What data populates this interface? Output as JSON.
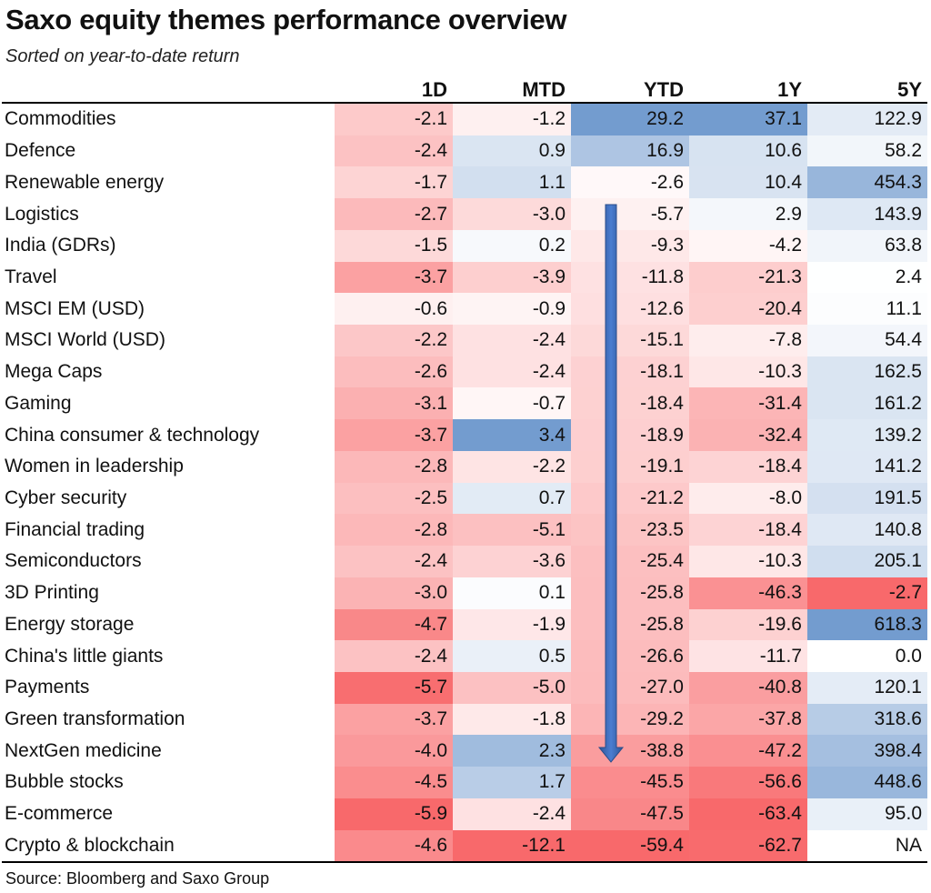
{
  "header": {
    "title": "Saxo equity themes performance overview",
    "subtitle": "Sorted on year-to-date return"
  },
  "footer": {
    "source": "Source: Bloomberg and Saxo Group"
  },
  "colors": {
    "negative": "#f8696b",
    "positive": "#5a8ac6",
    "neutral": "#ffffff",
    "arrow": "#4472c4"
  },
  "annotation": {
    "arrow": "down-arrow",
    "column": "YTD",
    "from_row": "Logistics",
    "to_row": "NextGen medicine"
  },
  "chart_data": {
    "type": "table",
    "title": "Saxo equity themes performance overview",
    "subtitle": "Sorted on year-to-date return",
    "columns": [
      "1D",
      "MTD",
      "YTD",
      "1Y",
      "5Y"
    ],
    "rows": [
      {
        "theme": "Commodities",
        "values": [
          "-2.1",
          "-1.2",
          "29.2",
          "37.1",
          "122.9"
        ]
      },
      {
        "theme": "Defence",
        "values": [
          "-2.4",
          "0.9",
          "16.9",
          "10.6",
          "58.2"
        ]
      },
      {
        "theme": "Renewable energy",
        "values": [
          "-1.7",
          "1.1",
          "-2.6",
          "10.4",
          "454.3"
        ]
      },
      {
        "theme": "Logistics",
        "values": [
          "-2.7",
          "-3.0",
          "-5.7",
          "2.9",
          "143.9"
        ]
      },
      {
        "theme": "India (GDRs)",
        "values": [
          "-1.5",
          "0.2",
          "-9.3",
          "-4.2",
          "63.8"
        ]
      },
      {
        "theme": "Travel",
        "values": [
          "-3.7",
          "-3.9",
          "-11.8",
          "-21.3",
          "2.4"
        ]
      },
      {
        "theme": "MSCI EM (USD)",
        "values": [
          "-0.6",
          "-0.9",
          "-12.6",
          "-20.4",
          "11.1"
        ]
      },
      {
        "theme": "MSCI World (USD)",
        "values": [
          "-2.2",
          "-2.4",
          "-15.1",
          "-7.8",
          "54.4"
        ]
      },
      {
        "theme": "Mega Caps",
        "values": [
          "-2.6",
          "-2.4",
          "-18.1",
          "-10.3",
          "162.5"
        ]
      },
      {
        "theme": "Gaming",
        "values": [
          "-3.1",
          "-0.7",
          "-18.4",
          "-31.4",
          "161.2"
        ]
      },
      {
        "theme": "China consumer & technology",
        "values": [
          "-3.7",
          "3.4",
          "-18.9",
          "-32.4",
          "139.2"
        ]
      },
      {
        "theme": "Women in leadership",
        "values": [
          "-2.8",
          "-2.2",
          "-19.1",
          "-18.4",
          "141.2"
        ]
      },
      {
        "theme": "Cyber security",
        "values": [
          "-2.5",
          "0.7",
          "-21.2",
          "-8.0",
          "191.5"
        ]
      },
      {
        "theme": "Financial trading",
        "values": [
          "-2.8",
          "-5.1",
          "-23.5",
          "-18.4",
          "140.8"
        ]
      },
      {
        "theme": "Semiconductors",
        "values": [
          "-2.4",
          "-3.6",
          "-25.4",
          "-10.3",
          "205.1"
        ]
      },
      {
        "theme": "3D Printing",
        "values": [
          "-3.0",
          "0.1",
          "-25.8",
          "-46.3",
          "-2.7"
        ]
      },
      {
        "theme": "Energy storage",
        "values": [
          "-4.7",
          "-1.9",
          "-25.8",
          "-19.6",
          "618.3"
        ]
      },
      {
        "theme": "China's little giants",
        "values": [
          "-2.4",
          "0.5",
          "-26.6",
          "-11.7",
          "0.0"
        ]
      },
      {
        "theme": "Payments",
        "values": [
          "-5.7",
          "-5.0",
          "-27.0",
          "-40.8",
          "120.1"
        ]
      },
      {
        "theme": "Green transformation",
        "values": [
          "-3.7",
          "-1.8",
          "-29.2",
          "-37.8",
          "318.6"
        ]
      },
      {
        "theme": "NextGen medicine",
        "values": [
          "-4.0",
          "2.3",
          "-38.8",
          "-47.2",
          "398.4"
        ]
      },
      {
        "theme": "Bubble stocks",
        "values": [
          "-4.5",
          "1.7",
          "-45.5",
          "-56.6",
          "448.6"
        ]
      },
      {
        "theme": "E-commerce",
        "values": [
          "-5.9",
          "-2.4",
          "-47.5",
          "-63.4",
          "95.0"
        ]
      },
      {
        "theme": "Crypto & blockchain",
        "values": [
          "-4.6",
          "-12.1",
          "-59.4",
          "-62.7",
          "NA"
        ]
      }
    ]
  }
}
